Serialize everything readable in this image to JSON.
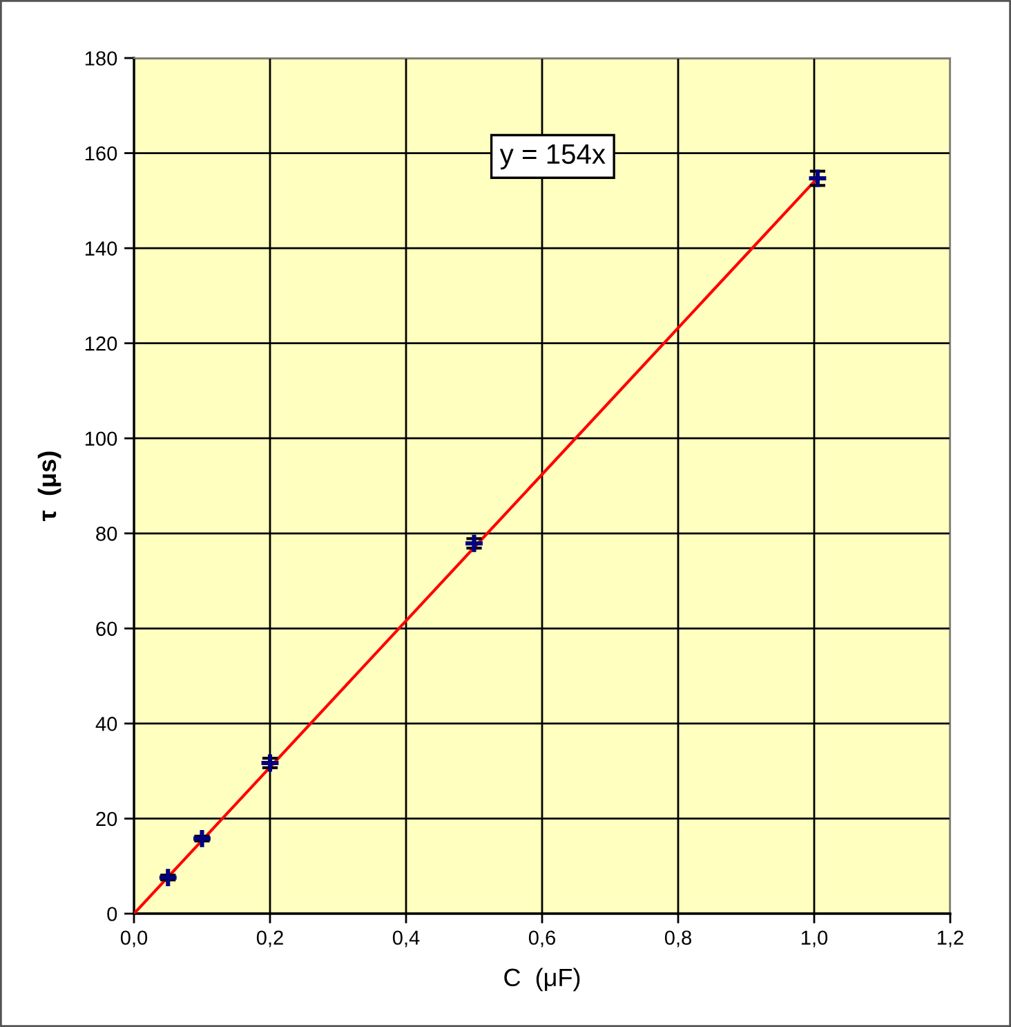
{
  "chart_data": {
    "type": "scatter",
    "xlabel": "C  (μF)",
    "ylabel": "τ  (μs)",
    "annotations": [
      "y = 154x"
    ],
    "xlim": [
      0,
      1.2
    ],
    "ylim": [
      0,
      180
    ],
    "xticks": [
      {
        "value": 0,
        "label": "0,0"
      },
      {
        "value": 0.2,
        "label": "0,2"
      },
      {
        "value": 0.4,
        "label": "0,4"
      },
      {
        "value": 0.6,
        "label": "0,6"
      },
      {
        "value": 0.8,
        "label": "0,8"
      },
      {
        "value": 1.0,
        "label": "1,0"
      },
      {
        "value": 1.2,
        "label": "1,2"
      }
    ],
    "yticks": [
      0,
      20,
      40,
      60,
      80,
      100,
      120,
      140,
      160,
      180
    ],
    "grid": true,
    "series": [
      {
        "color": "#000080",
        "x": [
          0.05,
          0.1,
          0.2,
          0.5,
          1.005
        ],
        "values": [
          7.6,
          15.8,
          31.7,
          77.9,
          154.7
        ],
        "errors": [
          0.5,
          0.5,
          1,
          1,
          1.5
        ],
        "marker": "cross"
      },
      {
        "type": "line",
        "color": "#ff0000",
        "x": [
          0,
          1.005
        ],
        "values": [
          0,
          154.8
        ],
        "marker": "none",
        "line_style": "solid"
      }
    ]
  }
}
